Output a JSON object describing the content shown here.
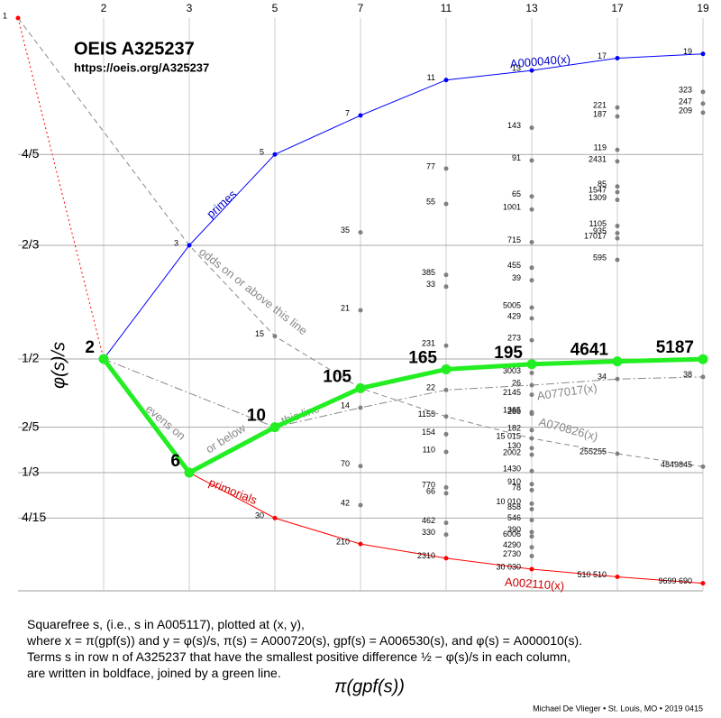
{
  "chart_data": {
    "type": "scatter",
    "title": "OEIS A325237",
    "subtitle": "https://oeis.org/A325237",
    "xlabel": "π(gpf(s))",
    "ylabel": "φ(s)/s",
    "xlim": [
      0,
      8
    ],
    "ylim": [
      0.16,
      1
    ],
    "xticks": [
      {
        "value": 1,
        "label": "2"
      },
      {
        "value": 2,
        "label": "3"
      },
      {
        "value": 3,
        "label": "5"
      },
      {
        "value": 4,
        "label": "7"
      },
      {
        "value": 5,
        "label": "11"
      },
      {
        "value": 6,
        "label": "13"
      },
      {
        "value": 7,
        "label": "17"
      },
      {
        "value": 8,
        "label": "19"
      }
    ],
    "yticks": [
      {
        "value": 0.8,
        "label": "4/5"
      },
      {
        "value": 0.666667,
        "label": "2/3"
      },
      {
        "value": 0.5,
        "label": "1/2"
      },
      {
        "value": 0.4,
        "label": "2/5"
      },
      {
        "value": 0.333333,
        "label": "1/3"
      },
      {
        "value": 0.266667,
        "label": "4/15"
      }
    ],
    "grid": true,
    "series": [
      {
        "color": "#888888",
        "line": "dashed",
        "x": [
          0,
          2,
          3,
          4,
          5,
          6,
          7,
          8
        ],
        "values": [
          1,
          0.666667,
          0.533333,
          0.457143,
          0.415584,
          0.383616,
          0.36105,
          0.342047
        ]
      },
      {
        "color": "#888888",
        "line": "dashdot",
        "x": [
          1,
          3,
          4,
          5,
          6,
          7,
          8
        ],
        "values": [
          0.5,
          0.4,
          0.428571,
          0.454545,
          0.461538,
          0.470588,
          0.473684
        ]
      },
      {
        "color": "#ff0000",
        "line": "dotted",
        "x": [
          0,
          1
        ],
        "values": [
          1,
          0.5
        ],
        "labels": [
          "1",
          null
        ]
      },
      {
        "color": "#808080",
        "x": [
          3,
          4,
          4,
          4,
          4,
          4,
          5,
          5,
          5,
          5,
          5,
          5,
          5,
          5,
          5,
          5,
          5,
          5,
          5,
          6,
          6,
          6,
          6,
          6,
          6,
          6,
          6,
          6,
          6,
          6,
          6,
          6,
          6,
          6,
          6,
          6,
          6,
          6,
          6,
          6,
          6,
          6,
          6,
          6,
          6,
          6,
          6,
          6,
          7,
          7,
          7,
          7,
          7,
          7,
          7,
          7,
          7,
          7,
          7,
          7,
          7,
          8,
          8,
          8,
          8,
          8
        ],
        "values": [
          0.533333,
          0.685714,
          0.571429,
          0.428571,
          0.342857,
          0.285714,
          0.779221,
          0.727273,
          0.623377,
          0.606061,
          0.519481,
          0.454545,
          0.415584,
          0.38961,
          0.363636,
          0.311688,
          0.30303,
          0.25974,
          0.242424,
          0.839161,
          0.791209,
          0.738462,
          0.719281,
          0.671329,
          0.633846,
          0.615385,
          0.575385,
          0.559441,
          0.527473,
          0.47952,
          0.461538,
          0.447552,
          0.421978,
          0.41958,
          0.395604,
          0.383616,
          0.369231,
          0.35964,
          0.335664,
          0.316484,
          0.307692,
          0.28776,
          0.27972,
          0.263736,
          0.246154,
          0.23976,
          0.223776,
          0.210989,
          0.868778,
          0.855615,
          0.806723,
          0.789799,
          0.752941,
          0.744667,
          0.733384,
          0.695023,
          0.684492,
          0.676971,
          0.645378,
          0.470588,
          0.36105,
          0.891641,
          0.874494,
          0.861244,
          0.473684,
          0.342047
        ],
        "labels": [
          "15",
          "35",
          "21",
          "14",
          "70",
          "42",
          "77",
          "55",
          "385",
          "33",
          "231",
          "22",
          "1155",
          "154",
          "110",
          "770",
          "66",
          "462",
          "330",
          "143",
          "91",
          "65",
          "1001",
          "715",
          "455",
          "39",
          "5005",
          "429",
          "273",
          "3003",
          "26",
          "2145",
          "1365",
          "286",
          "182",
          "15 015",
          "130",
          "2002",
          "1430",
          "910",
          "78",
          "10 010",
          "858",
          "546",
          "390",
          "6006",
          "4290",
          "2730",
          "221",
          "187",
          "119",
          "2431",
          "85",
          "1547",
          "1309",
          "1105",
          "935",
          "17017",
          "595",
          "34",
          "255255",
          "323",
          "247",
          "209",
          "38",
          "4849845"
        ]
      },
      {
        "color": "#0000ff",
        "line": "solid",
        "x": [
          1,
          2,
          3,
          4,
          5,
          6,
          7,
          8
        ],
        "values": [
          0.5,
          0.666667,
          0.8,
          0.857143,
          0.909091,
          0.923077,
          0.941176,
          0.947368
        ],
        "labels": [
          null,
          "3",
          "5",
          "7",
          "11",
          "13",
          "17",
          "19"
        ]
      },
      {
        "color": "#ff0000",
        "line": "solid",
        "x": [
          1,
          2,
          3,
          4,
          5,
          6,
          7,
          8
        ],
        "values": [
          0.5,
          0.333333,
          0.266667,
          0.228571,
          0.207792,
          0.191808,
          0.180525,
          0.171024
        ],
        "labels": [
          null,
          null,
          "30",
          "210",
          "2310",
          "30 030",
          "510 510",
          "9699 690"
        ]
      },
      {
        "color": "#22ee22",
        "line": "solid",
        "width": 5,
        "bold": true,
        "x": [
          1,
          2,
          3,
          4,
          5,
          6,
          7,
          8
        ],
        "values": [
          0.5,
          0.333333,
          0.4,
          0.457143,
          0.484848,
          0.492308,
          0.496445,
          0.499711
        ],
        "labels": [
          "2",
          "6",
          "10",
          "105",
          "165",
          "195",
          "4641",
          "5187"
        ]
      }
    ],
    "annotations": [
      "A000040(x)",
      "primes",
      "odds on or above this line",
      "evens on",
      "or below",
      "this line",
      "A077017(x)",
      "A070826(x)",
      "primorials",
      "A002110(x)"
    ],
    "caption": [
      "Squarefree s, (i.e., s in A005117), plotted at (x, y),",
      "where x = π(gpf(s)) and y = φ(s)/s, π(s) = A000720(s), gpf(s) = A006530(s), and  φ(s) = A000010(s).",
      "Terms s in row n of A325237 that have the smallest positive difference ½ − φ(s)/s in each column,",
      "are written in boldface, joined by a green line."
    ],
    "credit": "Michael De Vlieger • St. Louis, MO • 2019 0415"
  }
}
